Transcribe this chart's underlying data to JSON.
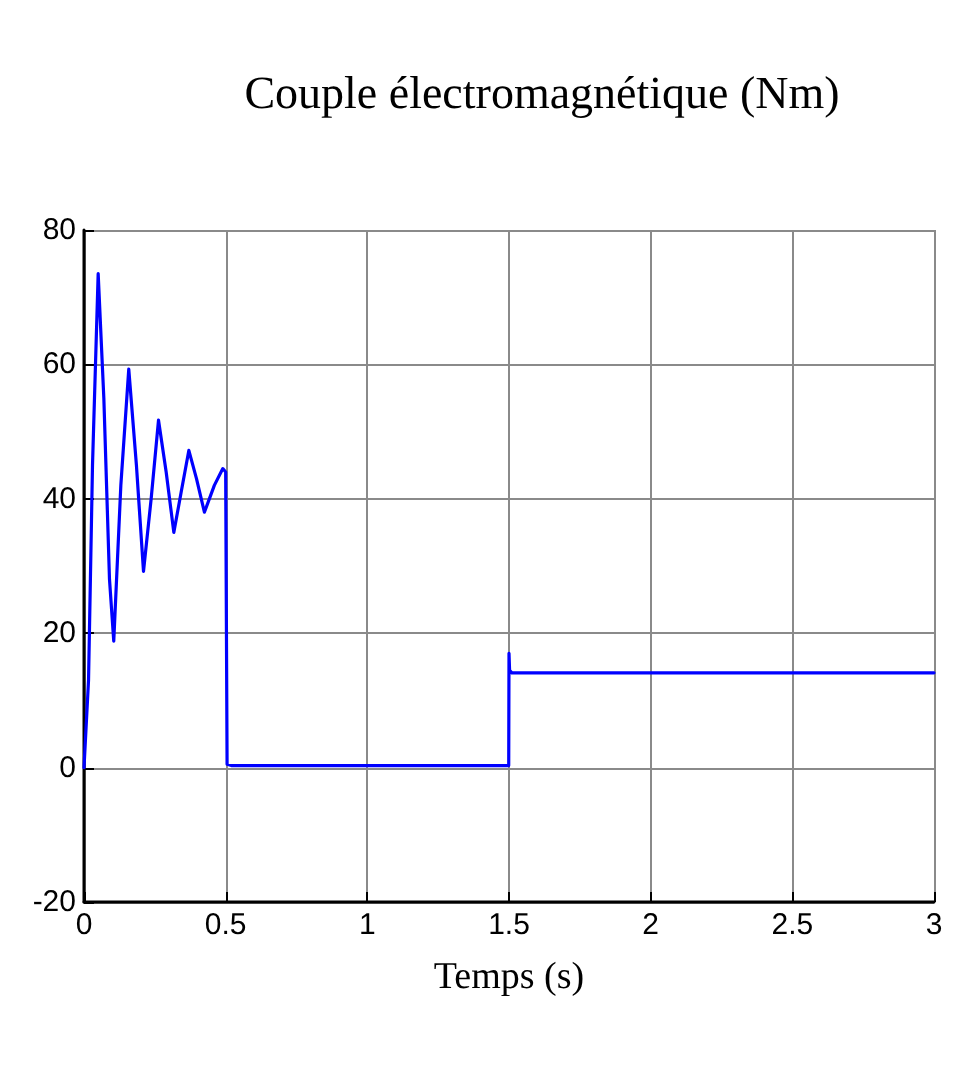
{
  "chart_data": {
    "type": "line",
    "title": "Couple électromagnétique (Nm)",
    "xlabel": "Temps (s)",
    "xlim": [
      0,
      3
    ],
    "xticks": [
      0,
      0.5,
      1,
      1.5,
      2,
      2.5,
      3
    ],
    "ylim": [
      -20,
      80
    ],
    "yticks": [
      -20,
      0,
      20,
      40,
      60,
      80
    ],
    "grid": true,
    "marker": "none",
    "line_style": "solid",
    "series": [
      {
        "color": "#0000ff",
        "x": [
          0,
          0.016,
          0.03,
          0.05,
          0.07,
          0.09,
          0.105,
          0.13,
          0.158,
          0.185,
          0.21,
          0.237,
          0.263,
          0.29,
          0.317,
          0.343,
          0.37,
          0.397,
          0.425,
          0.46,
          0.49,
          0.5,
          0.505,
          0.52,
          1.0,
          1.499,
          1.5,
          1.502,
          1.51,
          2.0,
          2.5,
          3.0
        ],
        "values": [
          0,
          13,
          45,
          73.5,
          55,
          28,
          18.8,
          42,
          59.3,
          45,
          29.2,
          40,
          51.7,
          44,
          35,
          41,
          47.2,
          43,
          38,
          42,
          44.5,
          44,
          0.5,
          0.3,
          0.3,
          0.3,
          17,
          14.5,
          14.1,
          14.1,
          14.1,
          14.1
        ]
      }
    ]
  }
}
